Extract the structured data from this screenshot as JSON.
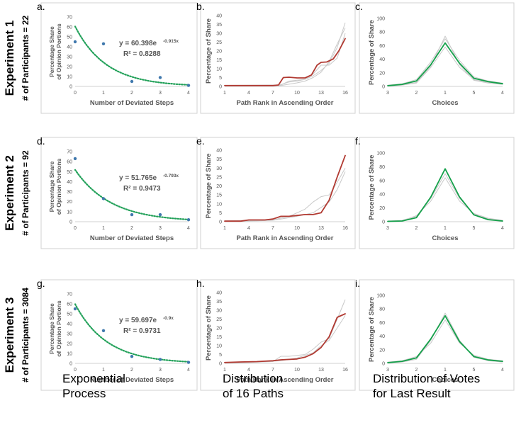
{
  "row_labels": [
    {
      "experiment": "Experiment 1",
      "participants": "# of Participants = 22"
    },
    {
      "experiment": "Experiment 2",
      "participants": "# of Participants = 92"
    },
    {
      "experiment": "Experiment 3",
      "participants": "# of Participants = 3084"
    }
  ],
  "column_titles": [
    [
      "Exponential",
      "Process"
    ],
    [
      "Distribution",
      "of 16 Paths"
    ],
    [
      "Distribution of Votes",
      "for Last Result"
    ]
  ],
  "chart_data": [
    {
      "panel": "a.",
      "type": "scatter",
      "row": 0,
      "col": 0,
      "ylabel": [
        "Percentage Share",
        "of Opinion Portions"
      ],
      "xlabel": "Number of Deviated Steps",
      "yticks": [
        0,
        10,
        20,
        30,
        40,
        50,
        60,
        70
      ],
      "xticks": [
        "0",
        "1",
        "2",
        "3",
        "4"
      ],
      "ylim": [
        0,
        70
      ],
      "xlim": [
        0,
        4
      ],
      "points": [
        [
          0,
          45
        ],
        [
          1,
          43
        ],
        [
          2,
          5
        ],
        [
          3,
          9
        ],
        [
          4,
          1
        ]
      ],
      "trendline": {
        "a": 60.398,
        "b": -0.915
      },
      "equation": "y = 60.398e",
      "exponent": "-0.915x",
      "r2": "R² = 0.8288"
    },
    {
      "panel": "b.",
      "type": "line",
      "row": 0,
      "col": 1,
      "ylabel": "Percentage of Share",
      "xlabel": "Path Rank in Ascending Order",
      "yticks": [
        0,
        5,
        10,
        15,
        20,
        25,
        30,
        35,
        40
      ],
      "xticks": [
        "1",
        "4",
        "7",
        "10",
        "13",
        "16"
      ],
      "ylim": [
        0,
        40
      ],
      "xlim": [
        1,
        16
      ],
      "main": [
        [
          1,
          0.5
        ],
        [
          7,
          0.5
        ],
        [
          7.7,
          0.8
        ],
        [
          8.3,
          5
        ],
        [
          9,
          5.2
        ],
        [
          10,
          4.8
        ],
        [
          11,
          4.8
        ],
        [
          11.8,
          6.5
        ],
        [
          12.5,
          12
        ],
        [
          13,
          13.6
        ],
        [
          13.7,
          13.8
        ],
        [
          14.5,
          15.5
        ],
        [
          15.2,
          20
        ],
        [
          16,
          27
        ]
      ],
      "ghosts": [
        [
          [
            1,
            0.3
          ],
          [
            7,
            0.3
          ],
          [
            8,
            1
          ],
          [
            9,
            2.5
          ],
          [
            10,
            3
          ],
          [
            11,
            4
          ],
          [
            12,
            6
          ],
          [
            13,
            9
          ],
          [
            14,
            13
          ],
          [
            15,
            22
          ],
          [
            16,
            36
          ]
        ],
        [
          [
            1,
            0.6
          ],
          [
            8,
            0.8
          ],
          [
            9,
            3
          ],
          [
            10,
            3.5
          ],
          [
            11,
            4
          ],
          [
            12,
            7
          ],
          [
            13,
            12
          ],
          [
            14,
            12
          ],
          [
            15,
            16
          ],
          [
            16,
            30
          ]
        ],
        [
          [
            1,
            0.2
          ],
          [
            8,
            0.5
          ],
          [
            10,
            2
          ],
          [
            11,
            3
          ],
          [
            12,
            5
          ],
          [
            13,
            8
          ],
          [
            14,
            14
          ],
          [
            15,
            24
          ],
          [
            16,
            33
          ]
        ]
      ]
    },
    {
      "panel": "c.",
      "type": "line",
      "row": 0,
      "col": 2,
      "ylabel": "Percentage of Share",
      "xlabel": "Choices",
      "yticks": [
        0,
        20,
        40,
        60,
        80,
        100
      ],
      "xticks": [
        "3",
        "2",
        "1",
        "5",
        "4"
      ],
      "ylim": [
        0,
        100
      ],
      "xlim": [
        0,
        4
      ],
      "main": [
        [
          0,
          1
        ],
        [
          0.5,
          3
        ],
        [
          1,
          8
        ],
        [
          1.5,
          32
        ],
        [
          2,
          64
        ],
        [
          2.5,
          34
        ],
        [
          3,
          12
        ],
        [
          3.5,
          7
        ],
        [
          4,
          4
        ]
      ],
      "ghosts": [
        [
          [
            0,
            1
          ],
          [
            0.5,
            2
          ],
          [
            1,
            6
          ],
          [
            1.5,
            30
          ],
          [
            2,
            74
          ],
          [
            2.5,
            32
          ],
          [
            3,
            9
          ],
          [
            3.5,
            5
          ],
          [
            4,
            3
          ]
        ],
        [
          [
            0,
            2
          ],
          [
            0.5,
            4
          ],
          [
            1,
            10
          ],
          [
            1.5,
            36
          ],
          [
            2,
            70
          ],
          [
            2.5,
            38
          ],
          [
            3,
            14
          ],
          [
            3.5,
            8
          ],
          [
            4,
            5
          ]
        ],
        [
          [
            0,
            0.5
          ],
          [
            0.5,
            2
          ],
          [
            1,
            5
          ],
          [
            1.5,
            28
          ],
          [
            2,
            58
          ],
          [
            2.5,
            28
          ],
          [
            3,
            10
          ],
          [
            3.5,
            6
          ],
          [
            4,
            4
          ]
        ]
      ]
    },
    {
      "panel": "d.",
      "type": "scatter",
      "row": 1,
      "col": 0,
      "ylabel": [
        "Percentage Share",
        "of Opinion Portions"
      ],
      "xlabel": "Number of Deviated Steps",
      "yticks": [
        0,
        10,
        20,
        30,
        40,
        50,
        60,
        70
      ],
      "xticks": [
        "0",
        "1",
        "2",
        "3",
        "4"
      ],
      "ylim": [
        0,
        70
      ],
      "xlim": [
        0,
        4
      ],
      "points": [
        [
          0,
          63
        ],
        [
          1,
          23
        ],
        [
          2,
          7
        ],
        [
          3,
          7
        ],
        [
          4,
          2
        ]
      ],
      "trendline": {
        "a": 51.765,
        "b": -0.793
      },
      "equation": "y = 51.765e",
      "exponent": "-0.793x",
      "r2": "R² = 0.9473"
    },
    {
      "panel": "e.",
      "type": "line",
      "row": 1,
      "col": 1,
      "ylabel": "Percentage of Share",
      "xlabel": "Path Rank in Ascending Order",
      "yticks": [
        0,
        5,
        10,
        15,
        20,
        25,
        30,
        35,
        40
      ],
      "xticks": [
        "1",
        "4",
        "7",
        "10",
        "13",
        "16"
      ],
      "ylim": [
        0,
        40
      ],
      "xlim": [
        1,
        16
      ],
      "main": [
        [
          1,
          0.3
        ],
        [
          3,
          0.3
        ],
        [
          4,
          1
        ],
        [
          6,
          1
        ],
        [
          7,
          1.5
        ],
        [
          8,
          3
        ],
        [
          9,
          3
        ],
        [
          10,
          3.5
        ],
        [
          11,
          4
        ],
        [
          12,
          4
        ],
        [
          13,
          5
        ],
        [
          14,
          12
        ],
        [
          15,
          25
        ],
        [
          16,
          37
        ]
      ],
      "ghosts": [
        [
          [
            1,
            0.5
          ],
          [
            4,
            0.8
          ],
          [
            7,
            1
          ],
          [
            8,
            2
          ],
          [
            9,
            3
          ],
          [
            10,
            5
          ],
          [
            11,
            7
          ],
          [
            12,
            11
          ],
          [
            13,
            14
          ],
          [
            14,
            15
          ],
          [
            15,
            22
          ],
          [
            16,
            30
          ]
        ],
        [
          [
            1,
            0.2
          ],
          [
            5,
            0.5
          ],
          [
            7,
            0.8
          ],
          [
            8,
            1.5
          ],
          [
            10,
            3
          ],
          [
            12,
            5
          ],
          [
            13,
            8
          ],
          [
            14,
            11
          ],
          [
            15,
            18
          ],
          [
            16,
            28
          ]
        ]
      ]
    },
    {
      "panel": "f.",
      "type": "line",
      "row": 1,
      "col": 2,
      "ylabel": "Percentage of Share",
      "xlabel": "Choices",
      "yticks": [
        0,
        20,
        40,
        60,
        80,
        100
      ],
      "xticks": [
        "3",
        "2",
        "1",
        "5",
        "4"
      ],
      "ylim": [
        0,
        100
      ],
      "xlim": [
        0,
        4
      ],
      "main": [
        [
          0,
          0.5
        ],
        [
          0.5,
          1
        ],
        [
          1,
          6
        ],
        [
          1.5,
          36
        ],
        [
          2,
          77
        ],
        [
          2.5,
          36
        ],
        [
          3,
          10
        ],
        [
          3.5,
          3
        ],
        [
          4,
          1
        ]
      ],
      "ghosts": [
        [
          [
            0,
            1
          ],
          [
            0.5,
            2
          ],
          [
            1,
            8
          ],
          [
            1.5,
            34
          ],
          [
            2,
            70
          ],
          [
            2.5,
            34
          ],
          [
            3,
            11
          ],
          [
            3.5,
            4
          ],
          [
            4,
            2
          ]
        ],
        [
          [
            0,
            0.5
          ],
          [
            0.5,
            1
          ],
          [
            1,
            9
          ],
          [
            1.5,
            30
          ],
          [
            2,
            64
          ],
          [
            2.5,
            30
          ],
          [
            3,
            12
          ],
          [
            3.5,
            5
          ],
          [
            4,
            2
          ]
        ]
      ]
    },
    {
      "panel": "g.",
      "type": "scatter",
      "row": 2,
      "col": 0,
      "ylabel": [
        "Percentage Share",
        "of Opinion Portions"
      ],
      "xlabel": "Number of Deviated Steps",
      "yticks": [
        0,
        10,
        20,
        30,
        40,
        50,
        60,
        70
      ],
      "xticks": [
        "0",
        "1",
        "2",
        "3",
        "4"
      ],
      "ylim": [
        0,
        70
      ],
      "xlim": [
        0,
        4
      ],
      "points": [
        [
          0,
          55
        ],
        [
          1,
          33
        ],
        [
          2,
          7
        ],
        [
          3,
          4
        ],
        [
          4,
          1
        ]
      ],
      "trendline": {
        "a": 59.697,
        "b": -0.9
      },
      "equation": "y = 59.697e",
      "exponent": "-0.9x",
      "r2": "R² = 0.9731"
    },
    {
      "panel": "h.",
      "type": "line",
      "row": 2,
      "col": 1,
      "ylabel": "Percentage of Share",
      "xlabel": "Path Rank in Ascending Order",
      "yticks": [
        0,
        5,
        10,
        15,
        20,
        25,
        30,
        35,
        40
      ],
      "xticks": [
        "1",
        "4",
        "7",
        "10",
        "13",
        "16"
      ],
      "ylim": [
        0,
        40
      ],
      "xlim": [
        1,
        16
      ],
      "main": [
        [
          1,
          0.5
        ],
        [
          3,
          0.8
        ],
        [
          5,
          1
        ],
        [
          7,
          1.5
        ],
        [
          8,
          2
        ],
        [
          10,
          2.5
        ],
        [
          11,
          3.5
        ],
        [
          12,
          5.5
        ],
        [
          13,
          9
        ],
        [
          14,
          15
        ],
        [
          15,
          26
        ],
        [
          16,
          28
        ]
      ],
      "ghosts": [
        [
          [
            1,
            0.3
          ],
          [
            4,
            0.5
          ],
          [
            7,
            1
          ],
          [
            8,
            4
          ],
          [
            9,
            4
          ],
          [
            10,
            4.5
          ],
          [
            11,
            5
          ],
          [
            12,
            8
          ],
          [
            13,
            12
          ],
          [
            14,
            14
          ],
          [
            15,
            25
          ],
          [
            16,
            36
          ]
        ],
        [
          [
            1,
            0.5
          ],
          [
            5,
            0.8
          ],
          [
            8,
            1.5
          ],
          [
            10,
            3
          ],
          [
            12,
            6
          ],
          [
            13,
            10
          ],
          [
            14,
            13
          ],
          [
            15,
            20
          ],
          [
            16,
            27
          ]
        ]
      ]
    },
    {
      "panel": "i.",
      "type": "line",
      "row": 2,
      "col": 2,
      "ylabel": "Percentage of Share",
      "xlabel": "Choices",
      "yticks": [
        0,
        20,
        40,
        60,
        80,
        100
      ],
      "xticks": [
        "3",
        "2",
        "1",
        "5",
        "4"
      ],
      "ylim": [
        0,
        100
      ],
      "xlim": [
        0,
        4
      ],
      "main": [
        [
          0,
          1
        ],
        [
          0.5,
          3
        ],
        [
          1,
          8
        ],
        [
          1.5,
          36
        ],
        [
          2,
          70
        ],
        [
          2.5,
          32
        ],
        [
          3,
          10
        ],
        [
          3.5,
          5
        ],
        [
          4,
          3
        ]
      ],
      "ghosts": [
        [
          [
            0,
            1
          ],
          [
            0.5,
            2
          ],
          [
            1,
            6
          ],
          [
            1.5,
            34
          ],
          [
            2,
            74
          ],
          [
            2.5,
            34
          ],
          [
            3,
            9
          ],
          [
            3.5,
            4
          ],
          [
            4,
            2
          ]
        ],
        [
          [
            0,
            2
          ],
          [
            0.5,
            4
          ],
          [
            1,
            10
          ],
          [
            1.5,
            30
          ],
          [
            2,
            64
          ],
          [
            2.5,
            30
          ],
          [
            3,
            12
          ],
          [
            3.5,
            6
          ],
          [
            4,
            4
          ]
        ]
      ]
    }
  ],
  "colors": {
    "trend": "#23a15a",
    "scatter": "#3f78ad",
    "red": "#b13a32",
    "green": "#14a04a",
    "ghost": "#c9c9c9",
    "axis": "#d0d0d0",
    "text": "#555555"
  }
}
